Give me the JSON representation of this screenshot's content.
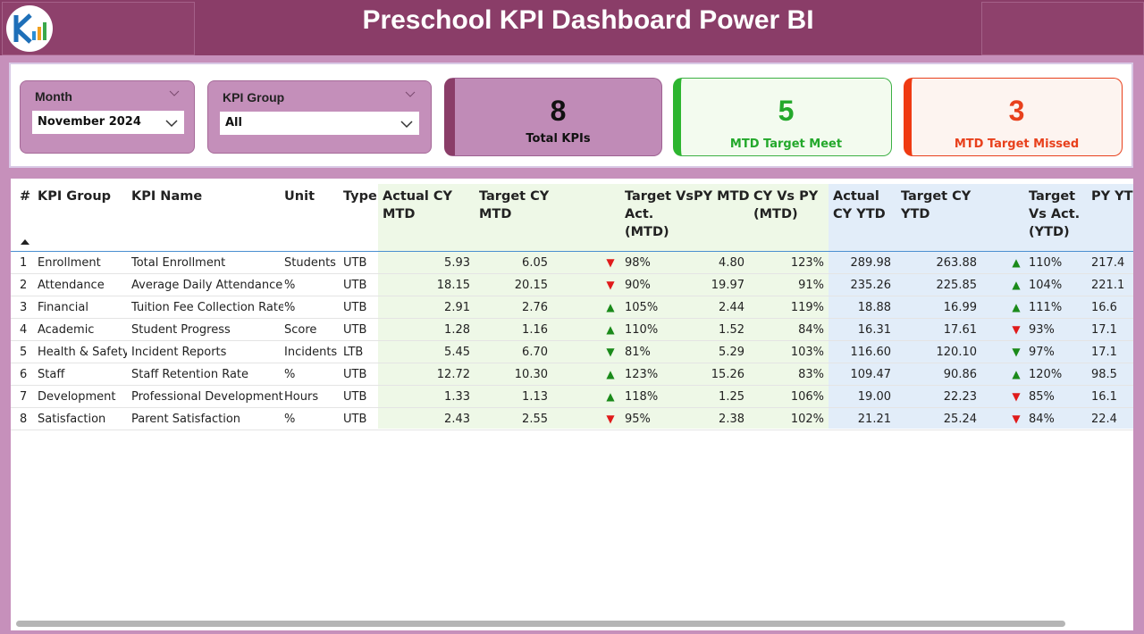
{
  "header": {
    "title": "Preschool KPI Dashboard Power BI"
  },
  "filters": [
    {
      "label": "Month",
      "value": "November 2024"
    },
    {
      "label": "KPI Group",
      "value": "All"
    }
  ],
  "cards": [
    {
      "value": "8",
      "label": "Total KPIs"
    },
    {
      "value": "5",
      "label": "MTD Target Meet"
    },
    {
      "value": "3",
      "label": "MTD Target Missed"
    }
  ],
  "table": {
    "headers": [
      "#",
      "KPI Group",
      "KPI Name",
      "Unit",
      "Type",
      "Actual CY MTD",
      "Target CY MTD",
      null,
      "Target Vs Act. (MTD)",
      "PY MTD",
      "CY Vs PY (MTD)",
      "Actual CY YTD",
      "Target CY YTD",
      null,
      "Target Vs Act. (YTD)",
      "PY YTD"
    ],
    "rows": [
      [
        "1",
        "Enrollment",
        "Total Enrollment",
        "Students",
        "UTB",
        "5.93",
        "6.05",
        "▼",
        "98%",
        "4.80",
        "123%",
        "289.98",
        "263.88",
        "▲",
        "110%",
        "217.4"
      ],
      [
        "2",
        "Attendance",
        "Average Daily Attendance",
        "%",
        "UTB",
        "18.15",
        "20.15",
        "▼",
        "90%",
        "19.97",
        "91%",
        "235.26",
        "225.85",
        "▲",
        "104%",
        "221.1"
      ],
      [
        "3",
        "Financial",
        "Tuition Fee Collection Rate",
        "%",
        "UTB",
        "2.91",
        "2.76",
        "▲",
        "105%",
        "2.44",
        "119%",
        "18.88",
        "16.99",
        "▲",
        "111%",
        "16.6"
      ],
      [
        "4",
        "Academic",
        "Student Progress",
        "Score",
        "UTB",
        "1.28",
        "1.16",
        "▲",
        "110%",
        "1.52",
        "84%",
        "16.31",
        "17.61",
        "▼",
        "93%",
        "17.1"
      ],
      [
        "5",
        "Health & Safety",
        "Incident Reports",
        "Incidents",
        "LTB",
        "5.45",
        "6.70",
        "▼",
        "81%",
        "5.29",
        "103%",
        "116.60",
        "120.10",
        "▼",
        "97%",
        "17.1"
      ],
      [
        "6",
        "Staff",
        "Staff Retention Rate",
        "%",
        "UTB",
        "12.72",
        "10.30",
        "▲",
        "123%",
        "15.26",
        "83%",
        "109.47",
        "90.86",
        "▲",
        "120%",
        "98.5"
      ],
      [
        "7",
        "Development",
        "Professional Development",
        "Hours",
        "UTB",
        "1.33",
        "1.13",
        "▲",
        "118%",
        "1.25",
        "106%",
        "19.00",
        "22.23",
        "▼",
        "85%",
        "16.1"
      ],
      [
        "8",
        "Satisfaction",
        "Parent Satisfaction",
        "%",
        "UTB",
        "2.43",
        "2.55",
        "▼",
        "95%",
        "2.38",
        "102%",
        "21.21",
        "25.24",
        "▼",
        "84%",
        "22.4"
      ]
    ]
  }
}
